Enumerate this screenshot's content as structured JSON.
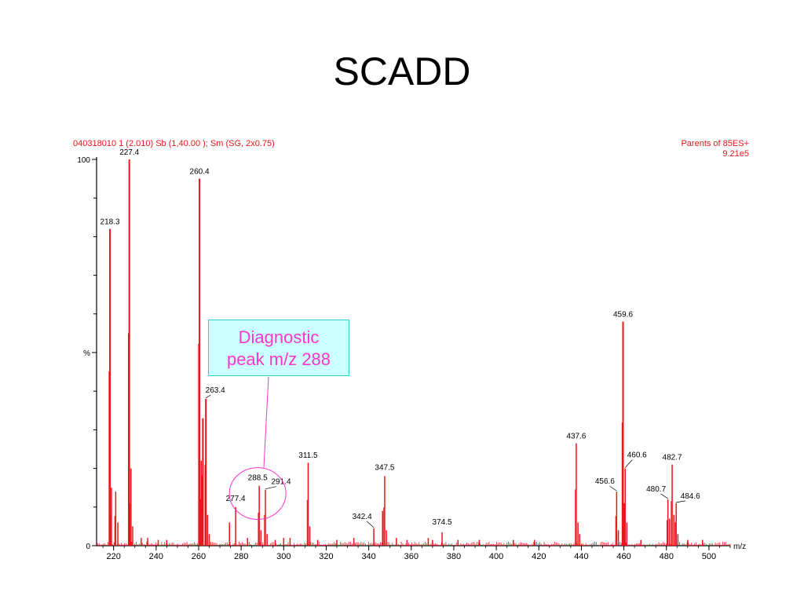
{
  "title": "SCADD",
  "header": {
    "left": "040318010  1 (2.010) Sb (1,40.00 ); Sm (SG, 2x0.75)",
    "right_line1": "Parents of 85ES+",
    "right_line2": "9.21e5"
  },
  "annotation": {
    "line1": "Diagnostic",
    "line2": "peak m/z 288",
    "highlight_mz": 288.5
  },
  "colors": {
    "spectrum": "#e8161a",
    "annotation_text": "#ff33cc",
    "annotation_fill": "#ccffff",
    "annotation_border": "#33cccc",
    "circle": "#ff33cc"
  },
  "chart_data": {
    "type": "bar",
    "title": "",
    "xlabel": "m/z",
    "ylabel": "%",
    "xlim": [
      212,
      510
    ],
    "ylim": [
      0,
      100
    ],
    "x_ticks": [
      220,
      240,
      260,
      280,
      300,
      320,
      340,
      360,
      380,
      400,
      420,
      440,
      460,
      480,
      500
    ],
    "y_tick_labels": [
      "0",
      "%",
      "100"
    ],
    "series": [
      {
        "peaks": [
          {
            "mz": 218.3,
            "intensity": 82,
            "label": "218.3"
          },
          {
            "mz": 219.0,
            "intensity": 15
          },
          {
            "mz": 221.0,
            "intensity": 14
          },
          {
            "mz": 222.0,
            "intensity": 6
          },
          {
            "mz": 227.4,
            "intensity": 100,
            "label": "227.4"
          },
          {
            "mz": 228.2,
            "intensity": 20
          },
          {
            "mz": 229.0,
            "intensity": 5
          },
          {
            "mz": 233.0,
            "intensity": 2
          },
          {
            "mz": 236.0,
            "intensity": 2
          },
          {
            "mz": 241.0,
            "intensity": 1.5
          },
          {
            "mz": 245.0,
            "intensity": 1.5
          },
          {
            "mz": 260.4,
            "intensity": 95,
            "label": "260.4"
          },
          {
            "mz": 261.2,
            "intensity": 22
          },
          {
            "mz": 262.0,
            "intensity": 33
          },
          {
            "mz": 263.4,
            "intensity": 38,
            "label": "263.4"
          },
          {
            "mz": 264.2,
            "intensity": 8
          },
          {
            "mz": 265.0,
            "intensity": 3
          },
          {
            "mz": 274.5,
            "intensity": 6
          },
          {
            "mz": 277.4,
            "intensity": 10,
            "label": "277.4"
          },
          {
            "mz": 283.0,
            "intensity": 2
          },
          {
            "mz": 288.5,
            "intensity": 15.5,
            "label": "288.5"
          },
          {
            "mz": 289.3,
            "intensity": 4
          },
          {
            "mz": 291.4,
            "intensity": 14.5,
            "label": "291.4"
          },
          {
            "mz": 292.2,
            "intensity": 3
          },
          {
            "mz": 296.0,
            "intensity": 1.5
          },
          {
            "mz": 300.0,
            "intensity": 2
          },
          {
            "mz": 303.0,
            "intensity": 2
          },
          {
            "mz": 311.5,
            "intensity": 21.5,
            "label": "311.5"
          },
          {
            "mz": 312.3,
            "intensity": 5
          },
          {
            "mz": 316.0,
            "intensity": 1.5
          },
          {
            "mz": 325.0,
            "intensity": 1.5
          },
          {
            "mz": 333.0,
            "intensity": 2
          },
          {
            "mz": 342.4,
            "intensity": 4.5,
            "label": "342.4"
          },
          {
            "mz": 346.5,
            "intensity": 9
          },
          {
            "mz": 347.5,
            "intensity": 18,
            "label": "347.5"
          },
          {
            "mz": 348.3,
            "intensity": 4
          },
          {
            "mz": 353.0,
            "intensity": 2
          },
          {
            "mz": 358.0,
            "intensity": 1.5
          },
          {
            "mz": 368.0,
            "intensity": 2
          },
          {
            "mz": 370.0,
            "intensity": 1.5
          },
          {
            "mz": 374.5,
            "intensity": 3.5,
            "label": "374.5"
          },
          {
            "mz": 382.0,
            "intensity": 1.5
          },
          {
            "mz": 392.0,
            "intensity": 1.5
          },
          {
            "mz": 408.0,
            "intensity": 1.5
          },
          {
            "mz": 418.0,
            "intensity": 1.5
          },
          {
            "mz": 437.6,
            "intensity": 26.5,
            "label": "437.6"
          },
          {
            "mz": 438.4,
            "intensity": 6
          },
          {
            "mz": 439.2,
            "intensity": 3
          },
          {
            "mz": 456.6,
            "intensity": 14,
            "label": "456.6"
          },
          {
            "mz": 457.4,
            "intensity": 4
          },
          {
            "mz": 459.6,
            "intensity": 58,
            "label": "459.6"
          },
          {
            "mz": 460.6,
            "intensity": 20,
            "label": "460.6"
          },
          {
            "mz": 461.4,
            "intensity": 6
          },
          {
            "mz": 468.0,
            "intensity": 1.5
          },
          {
            "mz": 480.7,
            "intensity": 12,
            "label": "480.7"
          },
          {
            "mz": 481.5,
            "intensity": 7
          },
          {
            "mz": 482.7,
            "intensity": 21,
            "label": "482.7"
          },
          {
            "mz": 483.5,
            "intensity": 8
          },
          {
            "mz": 484.6,
            "intensity": 11,
            "label": "484.6"
          },
          {
            "mz": 485.4,
            "intensity": 3
          },
          {
            "mz": 490.0,
            "intensity": 1.5
          },
          {
            "mz": 497.0,
            "intensity": 1.5
          }
        ]
      }
    ],
    "grid": false,
    "legend": "none"
  }
}
